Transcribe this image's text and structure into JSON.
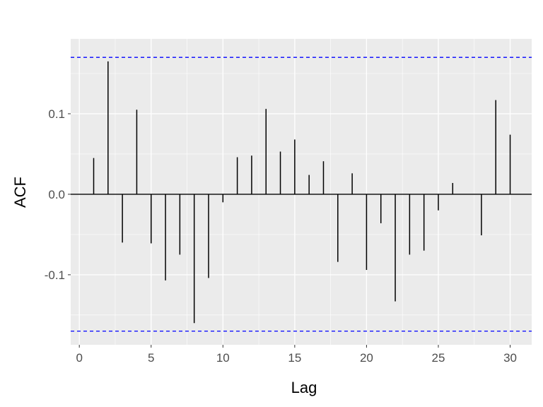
{
  "chart_data": {
    "type": "bar",
    "title": "",
    "xlabel": "Lag",
    "ylabel": "ACF",
    "x": [
      1,
      2,
      3,
      4,
      5,
      6,
      7,
      8,
      9,
      10,
      11,
      12,
      13,
      14,
      15,
      16,
      17,
      18,
      19,
      20,
      21,
      22,
      23,
      24,
      25,
      26,
      27,
      28,
      29,
      30
    ],
    "values": [
      0.045,
      0.165,
      -0.06,
      0.105,
      -0.061,
      -0.107,
      -0.075,
      -0.16,
      -0.104,
      -0.01,
      0.046,
      0.048,
      0.106,
      0.053,
      0.068,
      0.024,
      0.041,
      -0.084,
      0.026,
      -0.094,
      -0.036,
      -0.133,
      -0.075,
      -0.07,
      -0.02,
      0.014,
      0.0,
      -0.051,
      0.117,
      0.074
    ],
    "confidence_bounds": [
      -0.17,
      0.17
    ],
    "confidence_line_color": "#0000ff",
    "bar_color": "#000000",
    "panel_background": "#ebebeb",
    "xlim": [
      -0.6,
      31.5
    ],
    "ylim": [
      -0.187,
      0.193
    ],
    "xticks": [
      0,
      5,
      10,
      15,
      20,
      25,
      30
    ],
    "xtick_labels": [
      "0",
      "5",
      "10",
      "15",
      "20",
      "25",
      "30"
    ],
    "yticks": [
      -0.1,
      0.0,
      0.1
    ],
    "ytick_labels": [
      "-0.1",
      "0.0",
      "0.1"
    ],
    "grid": true,
    "legend": "none"
  }
}
